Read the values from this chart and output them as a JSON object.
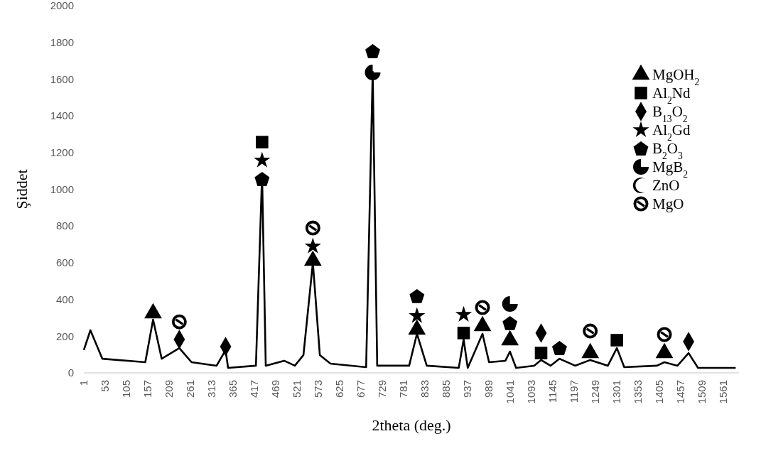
{
  "chart_data": {
    "type": "line",
    "xlabel": "2theta (deg.)",
    "ylabel": "Şiddet",
    "xlim": [
      1,
      1600
    ],
    "ylim": [
      0,
      2000
    ],
    "xticks": [
      1,
      53,
      105,
      157,
      209,
      261,
      313,
      365,
      417,
      469,
      521,
      573,
      625,
      677,
      729,
      781,
      833,
      885,
      937,
      989,
      1041,
      1093,
      1145,
      1197,
      1249,
      1301,
      1353,
      1405,
      1457,
      1509,
      1561
    ],
    "yticks": [
      0,
      200,
      400,
      600,
      800,
      1000,
      1200,
      1400,
      1600,
      1800,
      2000
    ],
    "legend": "top right",
    "grid": false,
    "series": [
      {
        "color": "#000000",
        "x": [
          1,
          17,
          46,
          151,
          170,
          191,
          234,
          264,
          325,
          347,
          353,
          421,
          436,
          445,
          490,
          516,
          537,
          560,
          577,
          603,
          690,
          706,
          717,
          795,
          814,
          838,
          916,
          928,
          938,
          974,
          990,
          1030,
          1041,
          1056,
          1100,
          1117,
          1140,
          1162,
          1200,
          1237,
          1280,
          1302,
          1320,
          1400,
          1418,
          1450,
          1477,
          1500,
          1592
        ],
        "values": [
          124,
          232,
          77,
          58,
          290,
          77,
          135,
          58,
          39,
          124,
          27,
          39,
          1080,
          39,
          66,
          39,
          97,
          600,
          97,
          50,
          31,
          1640,
          39,
          39,
          213,
          39,
          27,
          182,
          27,
          213,
          58,
          66,
          116,
          27,
          39,
          70,
          39,
          77,
          39,
          70,
          39,
          135,
          31,
          39,
          58,
          39,
          108,
          27,
          27
        ]
      },
      {
        "type": "scatter",
        "name": "MgOH$_{2}$",
        "marker": "triangle",
        "color": "#000000",
        "x": [
          170,
          560,
          814,
          974,
          1041,
          1237,
          1418
        ],
        "values": [
          325,
          611,
          236,
          255,
          178,
          108,
          108
        ]
      },
      {
        "type": "scatter",
        "name": "Al$_{2}$Nd",
        "marker": "square",
        "color": "#000000",
        "x": [
          436,
          928,
          1117,
          1302
        ],
        "values": [
          1257,
          217,
          108,
          178
        ]
      },
      {
        "type": "scatter",
        "name": "B$_{13}$O$_{2}$",
        "marker": "diamond",
        "color": "#000000",
        "x": [
          234,
          347,
          1117,
          1477
        ],
        "values": [
          182,
          143,
          217,
          170
        ]
      },
      {
        "type": "scatter",
        "name": "Al$_{2}$Gd",
        "marker": "star",
        "color": "#000000",
        "x": [
          436,
          560,
          814,
          928
        ],
        "values": [
          1157,
          689,
          310,
          317
        ]
      },
      {
        "type": "scatter",
        "name": "B$_{2}$O$_{3}$",
        "color": "#000000",
        "x": [
          436,
          706,
          814,
          1041,
          1162
        ],
        "values": [
          1056,
          1752,
          418,
          271,
          135
        ]
      },
      {
        "type": "scatter",
        "name": "MgB$_{2}$",
        "color": "#000000",
        "x": [
          706,
          1041
        ],
        "values": [
          1636,
          375
        ]
      },
      {
        "type": "scatter",
        "name": "ZnO",
        "color": "#000000"
      },
      {
        "type": "scatter",
        "name": "MgO",
        "color": "#000000",
        "x": [
          234,
          560,
          974,
          1237,
          1418
        ],
        "values": [
          278,
          789,
          356,
          228,
          209
        ]
      }
    ]
  }
}
